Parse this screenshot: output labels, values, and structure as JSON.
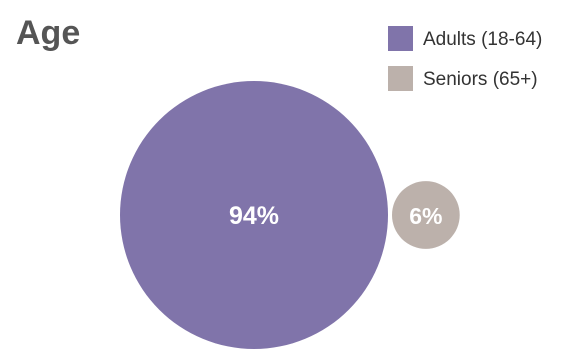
{
  "chart_data": {
    "type": "bubble",
    "title": "Age",
    "legend_position": "top-right",
    "grid": false,
    "series": [
      {
        "name": "Adults (18-64)",
        "value": 94,
        "label": "94%",
        "color": "#8074aa"
      },
      {
        "name": "Seniors (65+)",
        "value": 6,
        "label": "6%",
        "color": "#bcb1ab"
      }
    ]
  }
}
